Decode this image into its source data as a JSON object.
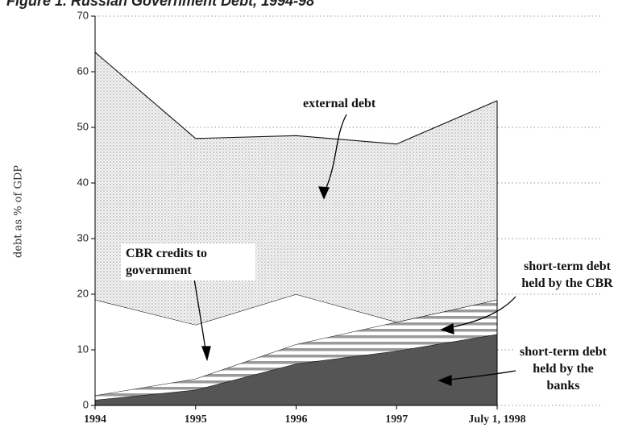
{
  "chart_data": {
    "type": "stacked_area",
    "title": "Figure 1. Russian Government Debt, 1994-98",
    "y_label": "debt as % of GDP",
    "categories": [
      "1994",
      "1995",
      "1996",
      "1997",
      "July 1, 1998"
    ],
    "series": [
      {
        "name": "short-term debt held by the banks",
        "color": "#555555",
        "values": [
          1,
          2.8,
          7.5,
          9.8,
          12.8
        ]
      },
      {
        "name": "short-term debt held by the CBR",
        "color": "#9a9a9a",
        "values": [
          0.8,
          2,
          3.5,
          5.2,
          6.2
        ]
      },
      {
        "name": "CBR credits to government",
        "color": "#ffffff",
        "values": [
          17.2,
          9.7,
          9,
          0,
          0
        ]
      },
      {
        "name": "external debt",
        "color": "#cfcfcf",
        "values": [
          44.5,
          33.5,
          28.5,
          32,
          35.8
        ]
      }
    ],
    "ylim": [
      0,
      70
    ],
    "yticks": [
      0,
      10,
      20,
      30,
      40,
      50,
      60,
      70
    ],
    "grid": true
  }
}
